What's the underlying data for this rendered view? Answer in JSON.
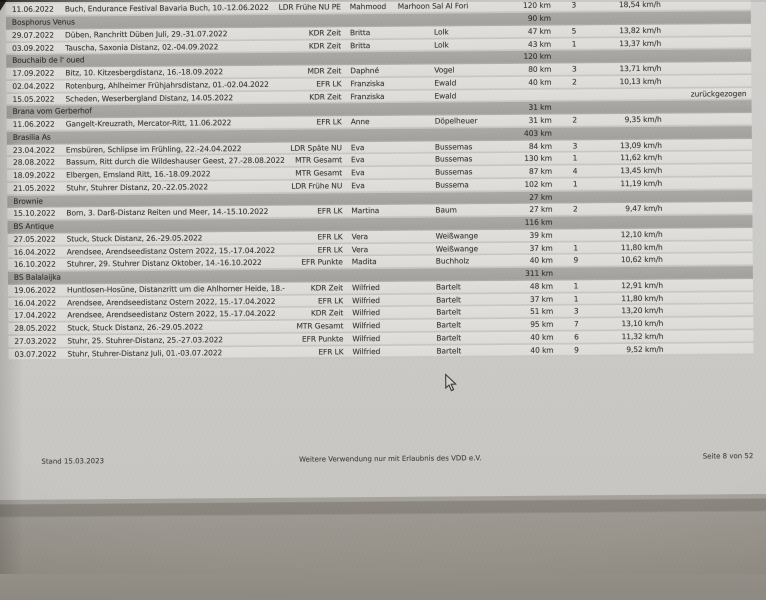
{
  "document": {
    "kind": "distance-riding results list (VDD)",
    "footer": {
      "left": "Stand 15.03.2023",
      "center": "Weitere Verwendung nur mit Erlaubnis des VDD e.V.",
      "right": "Seite 8 von 52"
    },
    "colors": {
      "page_bg": "#cccbc8",
      "row_bg": "#dddcd9",
      "section_band_bg": "#a2a19e",
      "text": "#3b3933",
      "desk_bg": "#97928a"
    },
    "sections": [
      {
        "horse": null,
        "total_km": null,
        "rows": [
          {
            "date": "11.06.2022",
            "event": "Buch, Endurance Festival Bavaria Buch, 10.-12.06.2022",
            "category": "LDR Frühe NU PE",
            "first": "Mahmood",
            "last": "Marhoon Sal Al Fori",
            "distance": "120 km",
            "placing": "3",
            "speed": "18,54 km/h",
            "note": ""
          }
        ]
      },
      {
        "horse": "Bosphorus Venus",
        "total_km": "90 km",
        "rows": [
          {
            "date": "29.07.2022",
            "event": "Düben, Ranchritt Düben Juli, 29.-31.07.2022",
            "category": "KDR Zeit",
            "first": "Britta",
            "last": "Lolk",
            "distance": "47 km",
            "placing": "5",
            "speed": "13,82 km/h",
            "note": ""
          },
          {
            "date": "03.09.2022",
            "event": "Tauscha, Saxonia Distanz, 02.-04.09.2022",
            "category": "KDR Zeit",
            "first": "Britta",
            "last": "Lolk",
            "distance": "43 km",
            "placing": "1",
            "speed": "13,37 km/h",
            "note": ""
          }
        ]
      },
      {
        "horse": "Bouchaib de l' oued",
        "total_km": "120 km",
        "rows": [
          {
            "date": "17.09.2022",
            "event": "Bitz, 10. Kitzesbergdistanz, 16.-18.09.2022",
            "category": "MDR Zeit",
            "first": "Daphné",
            "last": "Vogel",
            "distance": "80 km",
            "placing": "3",
            "speed": "13,71 km/h",
            "note": ""
          },
          {
            "date": "02.04.2022",
            "event": "Rotenburg, Ahlheimer Frühjahrsdistanz, 01.-02.04.2022",
            "category": "EFR LK",
            "first": "Franziska",
            "last": "Ewald",
            "distance": "40 km",
            "placing": "2",
            "speed": "10,13 km/h",
            "note": ""
          },
          {
            "date": "15.05.2022",
            "event": "Scheden, Weserbergland Distanz, 14.05.2022",
            "category": "KDR Zeit",
            "first": "Franziska",
            "last": "Ewald",
            "distance": "",
            "placing": "",
            "speed": "",
            "note": "zurückgezogen"
          }
        ]
      },
      {
        "horse": "Brana vom Gerberhof",
        "total_km": "31 km",
        "rows": [
          {
            "date": "11.06.2022",
            "event": "Gangelt-Kreuzrath, Mercator-Ritt, 11.06.2022",
            "category": "EFR LK",
            "first": "Anne",
            "last": "Döpelheuer",
            "distance": "31 km",
            "placing": "2",
            "speed": "9,35 km/h",
            "note": ""
          }
        ]
      },
      {
        "horse": "Brasilia As",
        "total_km": "403 km",
        "rows": [
          {
            "date": "23.04.2022",
            "event": "Emsbüren, Schlipse im Frühling, 22.-24.04.2022",
            "category": "LDR Späte NU",
            "first": "Eva",
            "last": "Bussemas",
            "distance": "84 km",
            "placing": "3",
            "speed": "13,09 km/h",
            "note": ""
          },
          {
            "date": "28.08.2022",
            "event": "Bassum, Ritt durch die Wildeshauser Geest, 27.-28.08.2022",
            "category": "MTR Gesamt",
            "first": "Eva",
            "last": "Bussemas",
            "distance": "130 km",
            "placing": "1",
            "speed": "11,62 km/h",
            "note": ""
          },
          {
            "date": "18.09.2022",
            "event": "Elbergen, Emsland Ritt, 16.-18.09.2022",
            "category": "MTR Gesamt",
            "first": "Eva",
            "last": "Bussemas",
            "distance": "87 km",
            "placing": "4",
            "speed": "13,45 km/h",
            "note": ""
          },
          {
            "date": "21.05.2022",
            "event": "Stuhr, Stuhrer Distanz, 20.-22.05.2022",
            "category": "LDR Frühe NU",
            "first": "Eva",
            "last": "Bussema",
            "distance": "102 km",
            "placing": "1",
            "speed": "11,19 km/h",
            "note": ""
          }
        ]
      },
      {
        "horse": "Brownie",
        "total_km": "27 km",
        "rows": [
          {
            "date": "15.10.2022",
            "event": "Born, 3. Darß-Distanz Reiten und Meer, 14.-15.10.2022",
            "category": "EFR LK",
            "first": "Martina",
            "last": "Baum",
            "distance": "27 km",
            "placing": "2",
            "speed": "9,47 km/h",
            "note": ""
          }
        ]
      },
      {
        "horse": "BS Antique",
        "total_km": "116 km",
        "rows": [
          {
            "date": "27.05.2022",
            "event": "Stuck, Stuck Distanz, 26.-29.05.2022",
            "category": "EFR LK",
            "first": "Vera",
            "last": "Weißwange",
            "distance": "39 km",
            "placing": "",
            "speed": "12,10 km/h",
            "note": ""
          },
          {
            "date": "16.04.2022",
            "event": "Arendsee, Arendseedistanz Ostern 2022, 15.-17.04.2022",
            "category": "EFR LK",
            "first": "Vera",
            "last": "Weißwange",
            "distance": "37 km",
            "placing": "1",
            "speed": "11,80 km/h",
            "note": ""
          },
          {
            "date": "16.10.2022",
            "event": "Stuhrer, 29. Stuhrer Distanz Oktober, 14.-16.10.2022",
            "category": "EFR Punkte",
            "first": "Madita",
            "last": "Buchholz",
            "distance": "40 km",
            "placing": "9",
            "speed": "10,62 km/h",
            "note": ""
          }
        ]
      },
      {
        "horse": "BS Balalaijka",
        "total_km": "311 km",
        "rows": [
          {
            "date": "19.06.2022",
            "event": "Huntlosen-Hosüne, Distanzritt um die Ahlhorner Heide, 18.-",
            "category": "KDR Zeit",
            "first": "Wilfried",
            "last": "Bartelt",
            "distance": "48 km",
            "placing": "1",
            "speed": "12,91 km/h",
            "note": ""
          },
          {
            "date": "16.04.2022",
            "event": "Arendsee, Arendseedistanz Ostern 2022, 15.-17.04.2022",
            "category": "EFR LK",
            "first": "Wilfried",
            "last": "Bartelt",
            "distance": "37 km",
            "placing": "1",
            "speed": "11,80 km/h",
            "note": ""
          },
          {
            "date": "17.04.2022",
            "event": "Arendsee, Arendseedistanz Ostern 2022, 15.-17.04.2022",
            "category": "KDR Zeit",
            "first": "Wilfried",
            "last": "Bartelt",
            "distance": "51 km",
            "placing": "3",
            "speed": "13,20 km/h",
            "note": ""
          },
          {
            "date": "28.05.2022",
            "event": "Stuck, Stuck Distanz, 26.-29.05.2022",
            "category": "MTR Gesamt",
            "first": "Wilfried",
            "last": "Bartelt",
            "distance": "95 km",
            "placing": "7",
            "speed": "13,10 km/h",
            "note": ""
          },
          {
            "date": "27.03.2022",
            "event": "Stuhr, 25. Stuhrer-Distanz, 25.-27.03.2022",
            "category": "EFR Punkte",
            "first": "Wilfried",
            "last": "Bartelt",
            "distance": "40 km",
            "placing": "6",
            "speed": "11,32 km/h",
            "note": ""
          },
          {
            "date": "03.07.2022",
            "event": "Stuhr, Stuhrer-Distanz Juli, 01.-03.07.2022",
            "category": "EFR LK",
            "first": "Wilfried",
            "last": "Bartelt",
            "distance": "40 km",
            "placing": "9",
            "speed": "9,52 km/h",
            "note": ""
          }
        ]
      }
    ],
    "pointer_icon": "arrow-cursor"
  }
}
